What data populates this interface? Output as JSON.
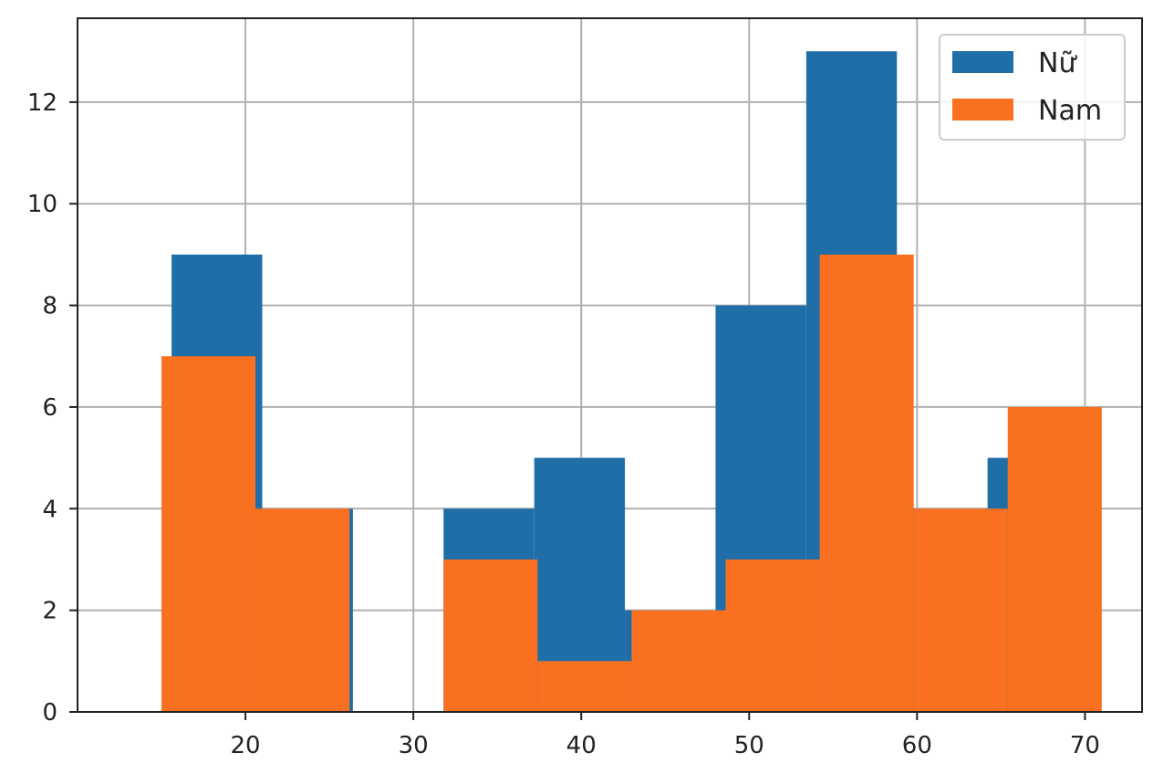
{
  "chart_data": {
    "type": "bar",
    "series": [
      {
        "name": "Nữ",
        "color": "#1f6ea8",
        "bins": [
          {
            "x0": 15.6,
            "x1": 21.0,
            "count": 9
          },
          {
            "x0": 21.0,
            "x1": 26.4,
            "count": 4
          },
          {
            "x0": 26.4,
            "x1": 31.8,
            "count": 0
          },
          {
            "x0": 31.8,
            "x1": 37.2,
            "count": 4
          },
          {
            "x0": 37.2,
            "x1": 42.6,
            "count": 5
          },
          {
            "x0": 42.6,
            "x1": 48.0,
            "count": 2
          },
          {
            "x0": 48.0,
            "x1": 53.4,
            "count": 8
          },
          {
            "x0": 53.4,
            "x1": 58.8,
            "count": 13
          },
          {
            "x0": 58.8,
            "x1": 64.2,
            "count": 4
          },
          {
            "x0": 64.2,
            "x1": 69.6,
            "count": 5
          }
        ]
      },
      {
        "name": "Nam",
        "color": "#f97020",
        "bins": [
          {
            "x0": 15.0,
            "x1": 20.6,
            "count": 7
          },
          {
            "x0": 20.6,
            "x1": 26.2,
            "count": 4
          },
          {
            "x0": 26.2,
            "x1": 31.8,
            "count": 0
          },
          {
            "x0": 31.8,
            "x1": 37.4,
            "count": 3
          },
          {
            "x0": 37.4,
            "x1": 43.0,
            "count": 1
          },
          {
            "x0": 43.0,
            "x1": 48.6,
            "count": 2
          },
          {
            "x0": 48.6,
            "x1": 54.2,
            "count": 3
          },
          {
            "x0": 54.2,
            "x1": 59.8,
            "count": 9
          },
          {
            "x0": 59.8,
            "x1": 65.4,
            "count": 4
          },
          {
            "x0": 65.4,
            "x1": 71.0,
            "count": 6
          }
        ]
      }
    ],
    "xlim": [
      10.0,
      73.4
    ],
    "ylim": [
      0,
      13.65
    ],
    "xticks": [
      20,
      30,
      40,
      50,
      60,
      70
    ],
    "yticks": [
      0,
      2,
      4,
      6,
      8,
      10,
      12
    ],
    "grid": true,
    "legend_position": "top-right",
    "title": "",
    "xlabel": "",
    "ylabel": ""
  }
}
